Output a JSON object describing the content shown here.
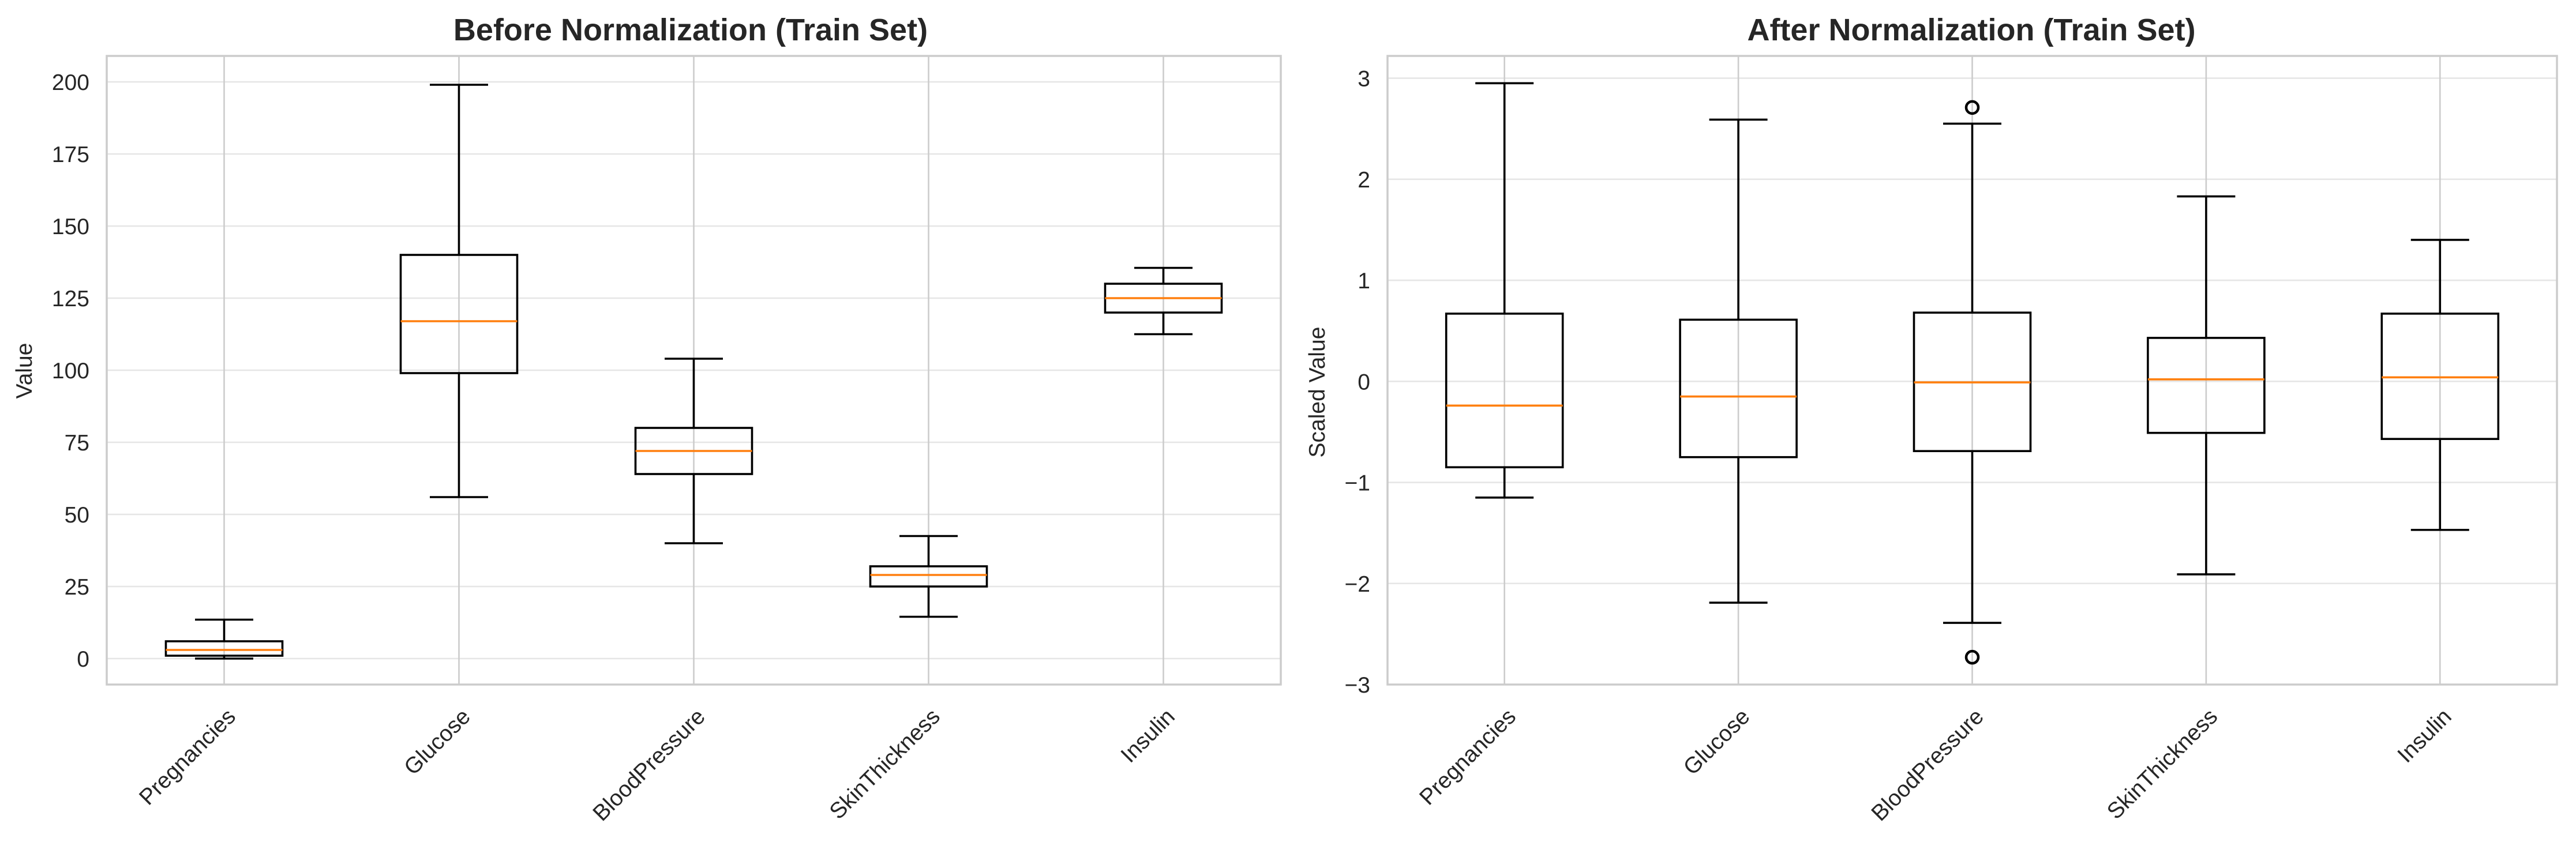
{
  "colors": {
    "box": "#000000",
    "median": "#ff7f0e",
    "grid": "#e6e6e6",
    "frame": "#cccccc"
  },
  "chart_data": [
    {
      "type": "boxplot",
      "title": "Before Normalization (Train Set)",
      "xlabel": "",
      "ylabel": "Value",
      "categories": [
        "Pregnancies",
        "Glucose",
        "BloodPressure",
        "SkinThickness",
        "Insulin"
      ],
      "ylim": [
        -9,
        209
      ],
      "yticks": [
        0,
        25,
        50,
        75,
        100,
        125,
        150,
        175,
        200
      ],
      "ytick_labels": [
        "0",
        "25",
        "50",
        "75",
        "100",
        "125",
        "150",
        "175",
        "200"
      ],
      "grid": true,
      "boxes": [
        {
          "whisker_low": 0,
          "q1": 1,
          "median": 3,
          "q3": 6,
          "whisker_high": 13.5,
          "fliers": []
        },
        {
          "whisker_low": 56,
          "q1": 99,
          "median": 117,
          "q3": 140,
          "whisker_high": 199,
          "fliers": []
        },
        {
          "whisker_low": 40,
          "q1": 64,
          "median": 72,
          "q3": 80,
          "whisker_high": 104,
          "fliers": []
        },
        {
          "whisker_low": 14.5,
          "q1": 25,
          "median": 29,
          "q3": 32,
          "whisker_high": 42.5,
          "fliers": []
        },
        {
          "whisker_low": 112.5,
          "q1": 120,
          "median": 125,
          "q3": 130,
          "whisker_high": 135.5,
          "fliers": []
        }
      ]
    },
    {
      "type": "boxplot",
      "title": "After Normalization (Train Set)",
      "xlabel": "",
      "ylabel": "Scaled Value",
      "categories": [
        "Pregnancies",
        "Glucose",
        "BloodPressure",
        "SkinThickness",
        "Insulin"
      ],
      "ylim": [
        -3.0,
        3.22
      ],
      "yticks": [
        -3,
        -2,
        -1,
        0,
        1,
        2,
        3
      ],
      "ytick_labels": [
        "−3",
        "−2",
        "−1",
        "0",
        "1",
        "2",
        "3"
      ],
      "grid": true,
      "boxes": [
        {
          "whisker_low": -1.15,
          "q1": -0.85,
          "median": -0.24,
          "q3": 0.67,
          "whisker_high": 2.95,
          "fliers": []
        },
        {
          "whisker_low": -2.19,
          "q1": -0.75,
          "median": -0.15,
          "q3": 0.61,
          "whisker_high": 2.59,
          "fliers": []
        },
        {
          "whisker_low": -2.39,
          "q1": -0.69,
          "median": -0.01,
          "q3": 0.68,
          "whisker_high": 2.55,
          "fliers": [
            2.71,
            -2.73
          ]
        },
        {
          "whisker_low": -1.91,
          "q1": -0.51,
          "median": 0.02,
          "q3": 0.43,
          "whisker_high": 1.83,
          "fliers": []
        },
        {
          "whisker_low": -1.47,
          "q1": -0.57,
          "median": 0.04,
          "q3": 0.67,
          "whisker_high": 1.4,
          "fliers": []
        }
      ]
    }
  ]
}
